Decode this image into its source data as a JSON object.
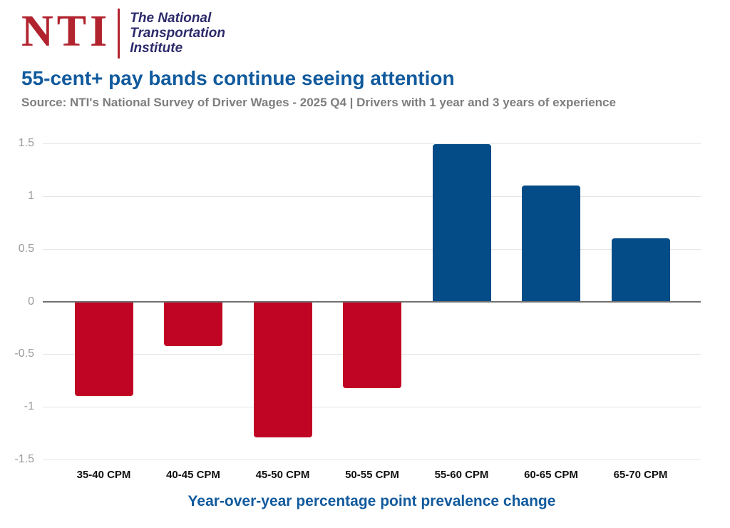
{
  "logo": {
    "acronym": "NTI",
    "name_lines": [
      "The National",
      "Transportation",
      "Institute"
    ],
    "acronym_color": "#B1242F",
    "name_color": "#2D2B6B"
  },
  "header": {
    "title": "55-cent+ pay bands continue seeing attention",
    "title_color": "#115A9D",
    "source": "Source: NTI's National Survey of Driver Wages - 2025 Q4 | Drivers with 1 year and 3 years of experience",
    "source_color": "#7E7E7E"
  },
  "chart_data": {
    "type": "bar",
    "categories": [
      "35-40 CPM",
      "40-45 CPM",
      "45-50 CPM",
      "50-55 CPM",
      "55-60 CPM",
      "60-65 CPM",
      "65-70 CPM"
    ],
    "values": [
      -0.9,
      -0.42,
      -1.29,
      -0.82,
      1.49,
      1.1,
      0.6
    ],
    "title": "55-cent+ pay bands continue seeing attention",
    "xlabel": "Year-over-year percentage point prevalence change",
    "ylabel": "",
    "ylim": [
      -1.5,
      1.5
    ],
    "yticks": [
      1.5,
      1,
      0.5,
      0,
      -0.5,
      -1,
      -1.5
    ],
    "grid": true,
    "legend": "none",
    "positive_color": "#044C87",
    "negative_color": "#C00424",
    "gridline_color": "#E4E4E4",
    "zero_line_color": "#707070"
  }
}
